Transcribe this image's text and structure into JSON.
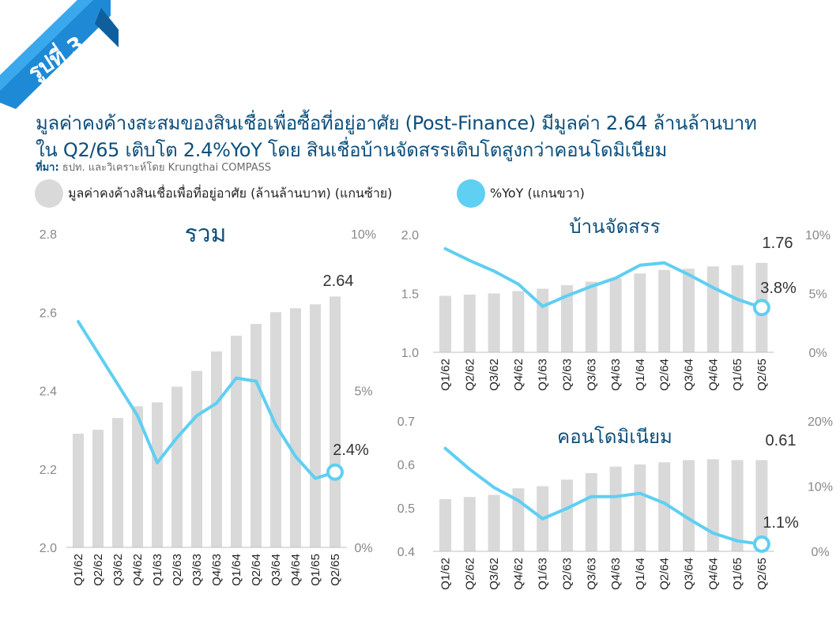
{
  "badge": "รูปที่ 3",
  "title_line1": "มูลค่าคงค้างสะสมของสินเชื่อเพื่อซื้อที่อยู่อาศัย (Post-Finance) มีมูลค่า 2.64 ล้านล้านบาท",
  "title_line2": "ใน Q2/65 เติบโต 2.4%YoY โดย สินเชื่อบ้านจัดสรรเติบโตสูงกว่าคอนโดมิเนียม",
  "source_prefix": "ที่มา:",
  "source_text": "ธปท. และวิเคราะห์โดย Krungthai COMPASS",
  "legend": {
    "bar_label": "มูลค่าคงค้างสินเชื่อเพื่อที่อยู่อาศัย (ล้านล้านบาท) (แกนซ้าย)",
    "line_label": "%YoY (แกนขวา)"
  },
  "colors": {
    "bar": "#d9d9d9",
    "line": "#5fcff2",
    "title": "#0d4f7c",
    "axis": "#888888",
    "badge": "#1e8ad6"
  },
  "chart_data": [
    {
      "type": "bar",
      "title": "รวม",
      "categories": [
        "Q1/62",
        "Q2/62",
        "Q3/62",
        "Q4/62",
        "Q1/63",
        "Q2/63",
        "Q3/63",
        "Q4/63",
        "Q1/64",
        "Q2/64",
        "Q3/64",
        "Q4/64",
        "Q1/65",
        "Q2/65"
      ],
      "bar_values": [
        2.29,
        2.3,
        2.33,
        2.36,
        2.37,
        2.41,
        2.45,
        2.5,
        2.54,
        2.57,
        2.6,
        2.61,
        2.62,
        2.64
      ],
      "line_values": [
        7.2,
        6.2,
        5.2,
        4.2,
        2.7,
        3.5,
        4.2,
        4.6,
        5.4,
        5.3,
        3.9,
        2.9,
        2.2,
        2.4
      ],
      "ylim_left": [
        2.0,
        2.8
      ],
      "yticks_left": [
        "2.8",
        "2.6",
        "2.4",
        "2.2",
        "2.0"
      ],
      "ylim_right": [
        0,
        10
      ],
      "yticks_right": [
        "10%",
        "5%",
        "0%"
      ],
      "last_bar_label": "2.64",
      "last_line_label": "2.4%"
    },
    {
      "type": "bar",
      "title": "บ้านจัดสรร",
      "categories": [
        "Q1/62",
        "Q2/62",
        "Q3/62",
        "Q4/62",
        "Q1/63",
        "Q2/63",
        "Q3/63",
        "Q4/63",
        "Q1/64",
        "Q2/64",
        "Q3/64",
        "Q4/64",
        "Q1/65",
        "Q2/65"
      ],
      "bar_values": [
        1.48,
        1.49,
        1.5,
        1.52,
        1.54,
        1.57,
        1.6,
        1.63,
        1.67,
        1.7,
        1.71,
        1.73,
        1.74,
        1.76
      ],
      "line_values": [
        8.8,
        7.8,
        6.9,
        5.8,
        3.9,
        4.8,
        5.6,
        6.3,
        7.4,
        7.6,
        6.6,
        5.5,
        4.5,
        3.8
      ],
      "ylim_left": [
        1.0,
        2.0
      ],
      "yticks_left": [
        "2.0",
        "1.5",
        "1.0"
      ],
      "ylim_right": [
        0,
        10
      ],
      "yticks_right": [
        "10%",
        "5%",
        "0%"
      ],
      "last_bar_label": "1.76",
      "last_line_label": "3.8%"
    },
    {
      "type": "bar",
      "title": "คอนโดมิเนียม",
      "categories": [
        "Q1/62",
        "Q2/62",
        "Q3/62",
        "Q4/62",
        "Q1/63",
        "Q2/63",
        "Q3/63",
        "Q4/63",
        "Q1/64",
        "Q2/64",
        "Q3/64",
        "Q4/64",
        "Q1/65",
        "Q2/65"
      ],
      "bar_values": [
        0.52,
        0.525,
        0.53,
        0.545,
        0.55,
        0.565,
        0.58,
        0.595,
        0.6,
        0.605,
        0.61,
        0.612,
        0.61,
        0.61
      ],
      "line_values": [
        15.8,
        12.6,
        9.8,
        7.8,
        5.0,
        6.6,
        8.4,
        8.4,
        8.9,
        7.4,
        5.0,
        2.8,
        1.6,
        1.1
      ],
      "ylim_left": [
        0.4,
        0.7
      ],
      "yticks_left": [
        "0.7",
        "0.6",
        "0.5",
        "0.4"
      ],
      "ylim_right": [
        0,
        20
      ],
      "yticks_right": [
        "20%",
        "10%",
        "0%"
      ],
      "last_bar_label": "0.61",
      "last_line_label": "1.1%"
    }
  ]
}
